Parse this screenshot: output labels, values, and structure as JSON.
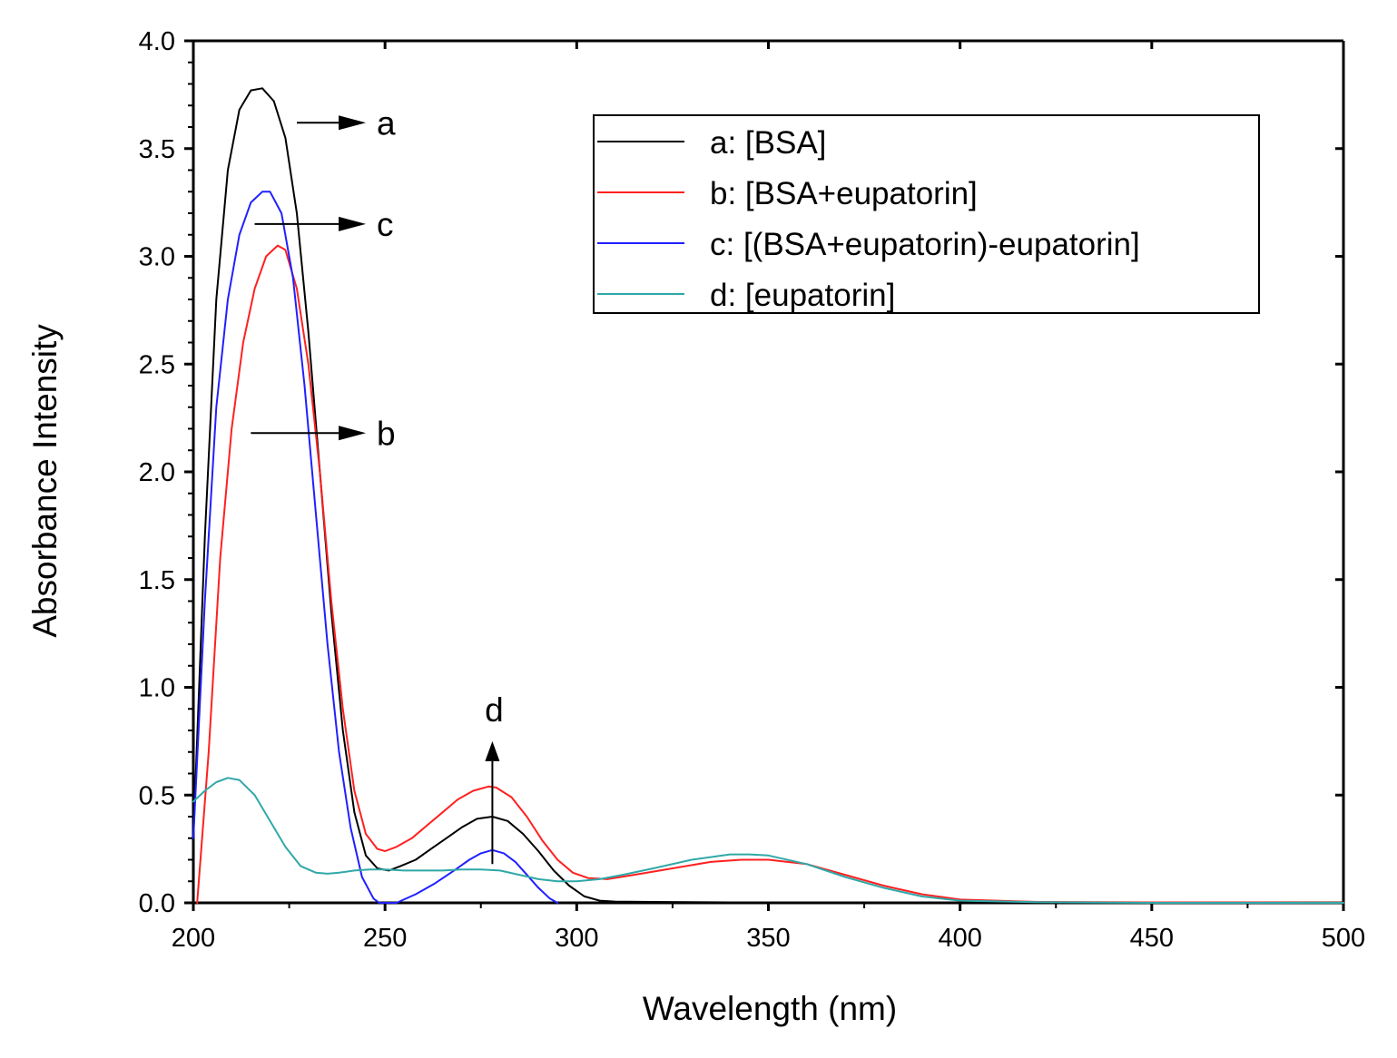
{
  "chart_data": {
    "type": "line",
    "title": "",
    "xlabel": "Wavelength (nm)",
    "ylabel": "Absorbance Intensity",
    "xlim": [
      200,
      500
    ],
    "ylim": [
      0.0,
      4.0
    ],
    "x_ticks": [
      "200",
      "250",
      "300",
      "350",
      "400",
      "450",
      "500"
    ],
    "y_ticks": [
      "0.0",
      "0.5",
      "1.0",
      "1.5",
      "2.0",
      "2.5",
      "3.0",
      "3.5",
      "4.0"
    ],
    "grid": false,
    "legend_position": "top-right",
    "series": [
      {
        "key": "a",
        "name": "a: [BSA]",
        "color": "#000000",
        "x": [
          200,
          203,
          206,
          209,
          212,
          215,
          218,
          221,
          224,
          227,
          230,
          233,
          236,
          239,
          242,
          245,
          248,
          251,
          254,
          258,
          262,
          266,
          270,
          274,
          278,
          282,
          286,
          290,
          294,
          298,
          302,
          306,
          310,
          320,
          340,
          360,
          400,
          450,
          500
        ],
        "values": [
          0.3,
          1.7,
          2.8,
          3.4,
          3.68,
          3.77,
          3.78,
          3.72,
          3.55,
          3.2,
          2.65,
          2.0,
          1.35,
          0.8,
          0.42,
          0.22,
          0.16,
          0.15,
          0.17,
          0.2,
          0.25,
          0.3,
          0.35,
          0.39,
          0.4,
          0.38,
          0.32,
          0.24,
          0.15,
          0.08,
          0.03,
          0.01,
          0.006,
          0.004,
          0.002,
          0.001,
          0.0,
          0.0,
          0.0
        ]
      },
      {
        "key": "b",
        "name": "b: [BSA+eupatorin]",
        "color": "#ff2020",
        "x": [
          201,
          204,
          207,
          210,
          213,
          216,
          219,
          222,
          224,
          227,
          230,
          233,
          236,
          239,
          242,
          245,
          248,
          250,
          253,
          257,
          261,
          265,
          269,
          273,
          277,
          279,
          283,
          287,
          291,
          295,
          299,
          303,
          308,
          315,
          325,
          335,
          343,
          350,
          360,
          370,
          380,
          390,
          400,
          420,
          450,
          500
        ],
        "values": [
          0.0,
          0.7,
          1.6,
          2.2,
          2.6,
          2.85,
          3.0,
          3.05,
          3.03,
          2.85,
          2.5,
          2.0,
          1.4,
          0.9,
          0.52,
          0.32,
          0.25,
          0.24,
          0.26,
          0.3,
          0.36,
          0.42,
          0.48,
          0.52,
          0.54,
          0.535,
          0.49,
          0.4,
          0.29,
          0.2,
          0.14,
          0.115,
          0.11,
          0.13,
          0.16,
          0.19,
          0.2,
          0.2,
          0.18,
          0.13,
          0.08,
          0.04,
          0.015,
          0.004,
          0.002,
          0.001
        ]
      },
      {
        "key": "c",
        "name": "c: [(BSA+eupatorin)-eupatorin]",
        "color": "#2020ff",
        "x": [
          200,
          203,
          206,
          209,
          212,
          215,
          218,
          220,
          223,
          226,
          229,
          232,
          235,
          238,
          241,
          244,
          247,
          248.5,
          253,
          258,
          263,
          268,
          272,
          275,
          278,
          281,
          284,
          287,
          290,
          293,
          295
        ],
        "values": [
          0.3,
          1.4,
          2.3,
          2.8,
          3.1,
          3.25,
          3.3,
          3.3,
          3.2,
          2.9,
          2.4,
          1.8,
          1.2,
          0.7,
          0.35,
          0.12,
          0.02,
          0.0,
          0.0,
          0.04,
          0.09,
          0.15,
          0.2,
          0.23,
          0.245,
          0.23,
          0.19,
          0.13,
          0.07,
          0.02,
          0.0
        ]
      },
      {
        "key": "d",
        "name": "d: [eupatorin]",
        "color": "#30a8a8",
        "x": [
          200,
          203,
          206,
          209,
          212,
          216,
          220,
          224,
          228,
          232,
          235,
          238,
          242,
          246,
          250,
          255,
          260,
          265,
          270,
          275,
          280,
          285,
          290,
          295,
          300,
          306,
          312,
          320,
          330,
          340,
          345,
          350,
          360,
          370,
          380,
          390,
          400,
          420,
          450,
          500
        ],
        "values": [
          0.47,
          0.52,
          0.56,
          0.58,
          0.57,
          0.5,
          0.38,
          0.26,
          0.17,
          0.14,
          0.135,
          0.14,
          0.15,
          0.155,
          0.155,
          0.15,
          0.15,
          0.15,
          0.155,
          0.155,
          0.15,
          0.13,
          0.11,
          0.1,
          0.1,
          0.11,
          0.13,
          0.16,
          0.2,
          0.225,
          0.225,
          0.22,
          0.18,
          0.12,
          0.07,
          0.03,
          0.01,
          0.003,
          0.0,
          0.0
        ]
      }
    ],
    "annotations": [
      {
        "label": "a",
        "direction": "right",
        "from": [
          227,
          3.62
        ],
        "to": [
          245,
          3.62
        ]
      },
      {
        "label": "c",
        "direction": "right",
        "from": [
          216,
          3.15
        ],
        "to": [
          245,
          3.15
        ]
      },
      {
        "label": "b",
        "direction": "right",
        "from": [
          215,
          2.18
        ],
        "to": [
          245,
          2.18
        ]
      },
      {
        "label": "d",
        "direction": "up",
        "from": [
          278,
          0.18
        ],
        "to": [
          278,
          0.75
        ]
      }
    ]
  }
}
